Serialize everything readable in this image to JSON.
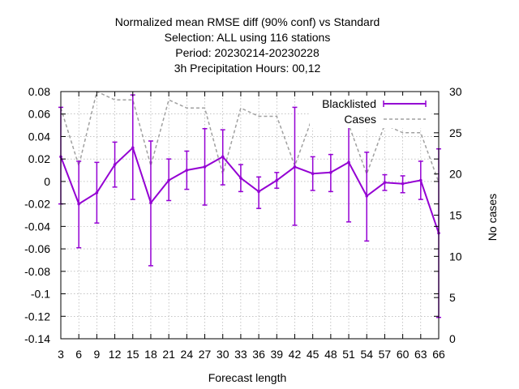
{
  "chart_data": {
    "type": "line",
    "title_lines": [
      "Normalized mean RMSE diff (90% conf) vs Standard",
      "Selection: ALL using   116 stations",
      "Period: 20230214-20230228",
      "3h Precipitation   Hours:  00,12"
    ],
    "xlabel": "Forecast length",
    "ylabel_right": "No cases",
    "x": [
      3,
      6,
      9,
      12,
      15,
      18,
      21,
      24,
      27,
      30,
      33,
      36,
      39,
      42,
      45,
      48,
      51,
      54,
      57,
      60,
      63,
      66
    ],
    "xlim": [
      3,
      66
    ],
    "ylim": [
      -0.14,
      0.08
    ],
    "y_ticks": [
      0.08,
      0.06,
      0.04,
      0.02,
      0,
      -0.02,
      -0.04,
      -0.06,
      -0.08,
      -0.1,
      -0.12,
      -0.14
    ],
    "y_tick_labels": [
      "0.08",
      "0.06",
      "0.04",
      "0.02",
      "0",
      "-0.02",
      "-0.04",
      "-0.06",
      "-0.08",
      "-0.1",
      "-0.12",
      "-0.14"
    ],
    "y2lim": [
      0,
      30
    ],
    "y2_ticks": [
      30,
      25,
      20,
      15,
      10,
      5,
      0
    ],
    "grid": true,
    "legend_position": "top-right",
    "series": [
      {
        "name": "Blacklisted",
        "color": "#9400d3",
        "values": [
          0.022,
          -0.02,
          -0.01,
          0.015,
          0.03,
          -0.019,
          0.001,
          0.01,
          0.013,
          0.022,
          0.003,
          -0.009,
          0.001,
          0.013,
          0.007,
          0.008,
          0.017,
          -0.013,
          -0.001,
          -0.002,
          0.001,
          -0.046
        ],
        "err_low": [
          -0.02,
          -0.059,
          -0.037,
          -0.005,
          -0.016,
          -0.075,
          -0.017,
          -0.007,
          -0.021,
          -0.003,
          -0.009,
          -0.024,
          -0.006,
          -0.039,
          -0.008,
          -0.009,
          -0.036,
          -0.053,
          -0.008,
          -0.01,
          -0.016,
          -0.121
        ],
        "err_high": [
          0.066,
          0.018,
          0.017,
          0.035,
          0.077,
          0.036,
          0.02,
          0.027,
          0.047,
          0.046,
          0.015,
          0.004,
          0.008,
          0.066,
          0.022,
          0.024,
          0.07,
          0.026,
          0.006,
          0.005,
          0.018,
          0.029
        ]
      },
      {
        "name": "Cases",
        "color": "#a0a0a0",
        "axis": "right",
        "values": [
          28,
          21,
          30,
          29,
          29,
          21,
          29,
          28,
          28,
          20,
          28,
          27,
          27,
          21,
          27,
          26,
          26,
          20,
          26,
          25,
          25,
          19
        ]
      }
    ]
  }
}
